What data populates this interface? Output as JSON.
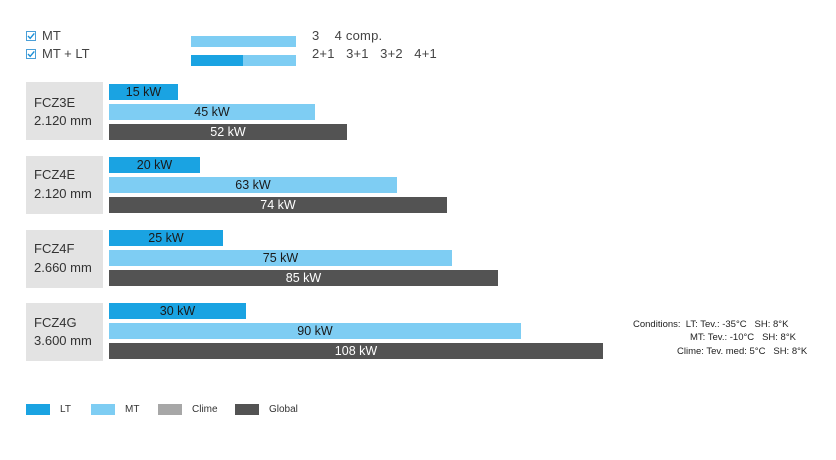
{
  "chart_data": {
    "type": "bar",
    "orientation": "horizontal",
    "unit": "kW",
    "categories": [
      {
        "name": "FCZ3E",
        "length": "2.120 mm"
      },
      {
        "name": "FCZ4E",
        "length": "2.120 mm"
      },
      {
        "name": "FCZ4F",
        "length": "2.660 mm"
      },
      {
        "name": "FCZ4G",
        "length": "3.600 mm"
      }
    ],
    "series": [
      {
        "name": "LT",
        "color": "#1aa3e2",
        "values": [
          15,
          20,
          25,
          30
        ],
        "labels": [
          "15 kW",
          "20 kW",
          "25 kW",
          "30 kW"
        ]
      },
      {
        "name": "MT",
        "color": "#7ecdf3",
        "values": [
          45,
          63,
          75,
          90
        ],
        "labels": [
          "45 kW",
          "63 kW",
          "75 kW",
          "90 kW"
        ]
      },
      {
        "name": "Global",
        "color": "#535353",
        "values": [
          52,
          74,
          85,
          108
        ],
        "labels": [
          "52 kW",
          "74 kW",
          "85 kW",
          "108 kW"
        ]
      }
    ],
    "legend": [
      {
        "name": "LT",
        "color": "#1aa3e2"
      },
      {
        "name": "MT",
        "color": "#7ecdf3"
      },
      {
        "name": "Clime",
        "color": "#a7a7a7"
      },
      {
        "name": "Global",
        "color": "#535353"
      }
    ],
    "legend_placement": "bottom-left"
  },
  "top_legend": {
    "checks": [
      {
        "label": "MT"
      },
      {
        "label": "MT + LT"
      }
    ],
    "comp_row1": "3    4 comp.",
    "comp_row2": "2+1   3+1   3+2   4+1"
  },
  "conditions": {
    "line1": "Conditions:  LT: Tev.: -35°C   SH: 8°K",
    "line2": "MT: Tev.: -10°C   SH: 8°K",
    "line3": "Clime: Tev. med: 5°C   SH: 8°K"
  }
}
